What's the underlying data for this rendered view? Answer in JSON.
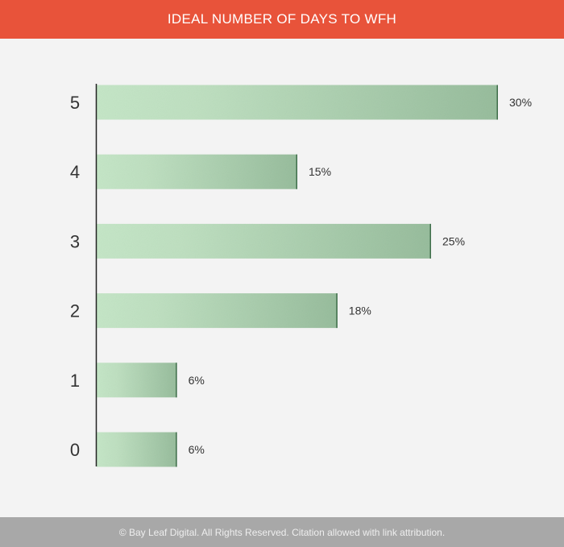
{
  "header": {
    "title": "IDEAL NUMBER OF DAYS TO WFH"
  },
  "footer": {
    "text": "© Bay Leaf Digital. All Rights Reserved. Citation allowed with link attribution."
  },
  "colors": {
    "header_bg": "#e8533a",
    "footer_bg": "#a8a8a8",
    "page_bg": "#f3f3f3",
    "bar_light": "#c5e6c7",
    "bar_dark": "#98bd9d",
    "bar_edge": "#3f6e4a",
    "axis": "#222222"
  },
  "chart_data": {
    "type": "bar",
    "orientation": "horizontal",
    "title": "IDEAL NUMBER OF DAYS TO WFH",
    "xlabel": "",
    "ylabel": "",
    "grid": false,
    "categories": [
      "5",
      "4",
      "3",
      "2",
      "1",
      "0"
    ],
    "values": [
      30,
      15,
      25,
      18,
      6,
      6
    ],
    "value_labels": [
      "30%",
      "15%",
      "25%",
      "18%",
      "6%",
      "6%"
    ],
    "xlim": [
      0,
      30
    ]
  }
}
